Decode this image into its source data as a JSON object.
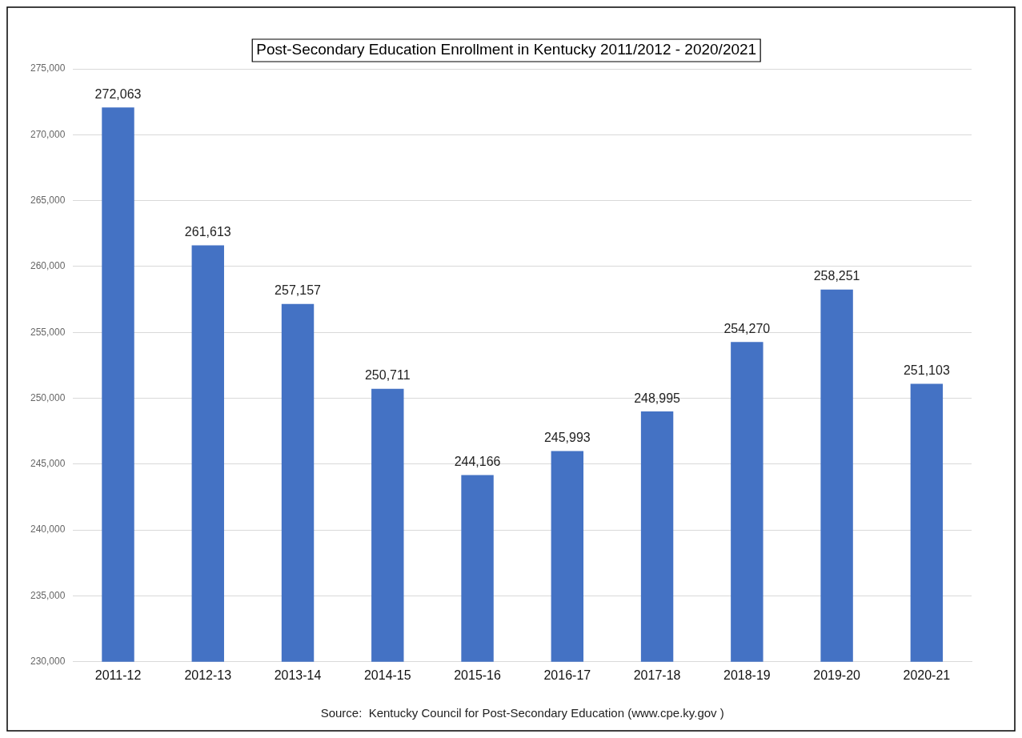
{
  "chart_data": {
    "type": "bar",
    "title": "Post-Secondary Education Enrollment in Kentucky 2011/2012 - 2020/2021",
    "categories": [
      "2011-12",
      "2012-13",
      "2013-14",
      "2014-15",
      "2015-16",
      "2016-17",
      "2017-18",
      "2018-19",
      "2019-20",
      "2020-21"
    ],
    "values": [
      272063,
      261613,
      257157,
      250711,
      244166,
      245993,
      248995,
      254270,
      258251,
      251103
    ],
    "color": "#4472c4",
    "ylim": [
      230000,
      275000
    ],
    "yticks": [
      {
        "value": 230000,
        "label": "230,000"
      },
      {
        "value": 235000,
        "label": "235,000"
      },
      {
        "value": 240000,
        "label": "240,000"
      },
      {
        "value": 245000,
        "label": "245,000"
      },
      {
        "value": 250000,
        "label": "250,000"
      },
      {
        "value": 255000,
        "label": "255,000"
      },
      {
        "value": 260000,
        "label": "260,000"
      },
      {
        "value": 265000,
        "label": "265,000"
      },
      {
        "value": 270000,
        "label": "270,000"
      },
      {
        "value": 275000,
        "label": "275,000"
      }
    ],
    "grid": "y",
    "value_labels": [
      "272,063",
      "261,613",
      "257,157",
      "250,711",
      "244,166",
      "245,993",
      "248,995",
      "254,270",
      "258,251",
      "251,103"
    ],
    "annotations": [
      "Source:  Kentucky Council for Post-Secondary Education (www.cpe.ky.gov )"
    ]
  }
}
